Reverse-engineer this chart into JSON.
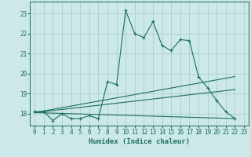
{
  "xlabel": "Humidex (Indice chaleur)",
  "xlim": [
    -0.5,
    23.5
  ],
  "ylim": [
    17.4,
    23.6
  ],
  "yticks": [
    18,
    19,
    20,
    21,
    22,
    23
  ],
  "xticks": [
    0,
    1,
    2,
    3,
    4,
    5,
    6,
    7,
    8,
    9,
    10,
    11,
    12,
    13,
    14,
    15,
    16,
    17,
    18,
    19,
    20,
    21,
    22,
    23
  ],
  "bg_color": "#cde8e8",
  "grid_color": "#a8cece",
  "line_color": "#1a6e62",
  "line1": {
    "x": [
      0,
      1,
      2,
      3,
      4,
      5,
      6,
      7,
      8,
      9,
      10,
      11,
      12,
      13,
      14,
      15,
      16,
      17,
      18,
      19,
      20,
      21,
      22
    ],
    "y": [
      18.1,
      18.1,
      17.65,
      18.0,
      17.75,
      17.75,
      17.9,
      17.75,
      19.6,
      19.45,
      23.15,
      22.0,
      21.8,
      22.6,
      21.4,
      21.15,
      21.7,
      21.65,
      19.85,
      19.3,
      18.65,
      18.1,
      17.75
    ]
  },
  "line2": {
    "x": [
      0,
      22
    ],
    "y": [
      18.05,
      19.85
    ]
  },
  "line3": {
    "x": [
      0,
      22
    ],
    "y": [
      18.05,
      19.2
    ]
  },
  "line4": {
    "x": [
      0,
      22
    ],
    "y": [
      18.05,
      17.75
    ]
  }
}
